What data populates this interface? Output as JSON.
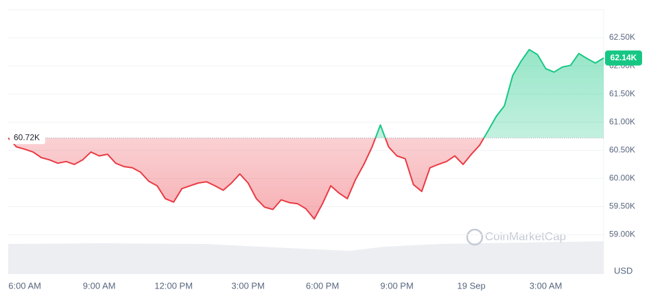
{
  "chart_data": {
    "type": "line",
    "categories": [
      null,
      null,
      "6:00 AM",
      null,
      null,
      null,
      null,
      null,
      null,
      null,
      null,
      "9:00 AM",
      null,
      null,
      null,
      null,
      null,
      null,
      null,
      null,
      "12:00 PM",
      null,
      null,
      null,
      null,
      null,
      null,
      null,
      null,
      "3:00 PM",
      null,
      null,
      null,
      null,
      null,
      null,
      null,
      null,
      "6:00 PM",
      null,
      null,
      null,
      null,
      null,
      null,
      null,
      null,
      "9:00 PM",
      null,
      null,
      null,
      null,
      null,
      null,
      null,
      null,
      "19 Sep",
      null,
      null,
      null,
      null,
      null,
      null,
      null,
      null,
      "3:00 AM",
      null,
      null,
      null,
      null,
      null,
      null,
      null
    ],
    "values": [
      60720,
      60560,
      60520,
      60470,
      60370,
      60330,
      60270,
      60300,
      60250,
      60330,
      60470,
      60400,
      60430,
      60270,
      60210,
      60190,
      60110,
      59950,
      59870,
      59640,
      59580,
      59820,
      59870,
      59920,
      59940,
      59870,
      59790,
      59920,
      60080,
      59920,
      59640,
      59490,
      59450,
      59620,
      59570,
      59550,
      59460,
      59280,
      59550,
      59870,
      59740,
      59640,
      59980,
      60250,
      60560,
      60950,
      60560,
      60400,
      60350,
      59890,
      59770,
      60190,
      60250,
      60300,
      60400,
      60250,
      60430,
      60590,
      60840,
      61100,
      61290,
      61830,
      62080,
      62290,
      62200,
      61950,
      61890,
      61980,
      62010,
      62220,
      62130,
      62050,
      62140
    ],
    "up_color": "#16c784",
    "down_color": "#ea3943",
    "baseline": {
      "value": 60720,
      "label": "60.72K"
    },
    "last_price": {
      "value": 62140,
      "label": "62.14K"
    },
    "ylim": [
      58300,
      63000
    ],
    "yticks": [
      {
        "value": 62500,
        "label": "62.50K"
      },
      {
        "value": 62000,
        "label": "62.00K"
      },
      {
        "value": 61500,
        "label": "61.50K"
      },
      {
        "value": 61000,
        "label": "61.00K"
      },
      {
        "value": 60500,
        "label": "60.50K"
      },
      {
        "value": 60000,
        "label": "60.00K"
      },
      {
        "value": 59500,
        "label": "59.50K"
      },
      {
        "value": 59000,
        "label": "59.00K"
      }
    ],
    "grid": true,
    "currency": "USD",
    "watermark": "CoinMarketCap"
  }
}
